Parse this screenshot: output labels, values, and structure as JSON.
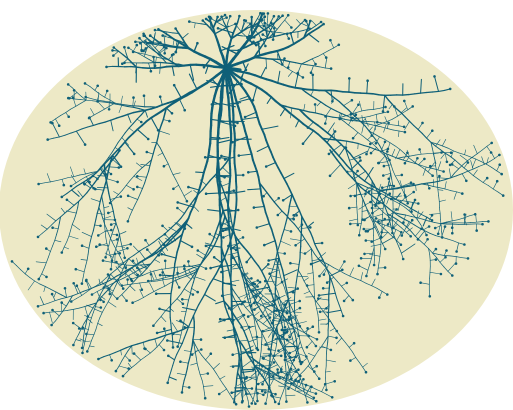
{
  "colors": {
    "background": "#ffffff",
    "field": "#ede9c6",
    "stroke": "#0f6078",
    "tip": "#0f6078"
  },
  "diagram": {
    "type": "branching-tree",
    "shape": "ellipse",
    "labels": []
  }
}
